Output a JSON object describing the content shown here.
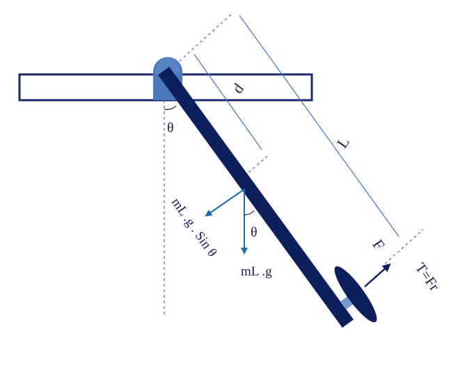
{
  "diagram": {
    "labels": {
      "theta_pivot": "θ",
      "distance_d": "d",
      "length_L": "L",
      "theta_mass": "θ",
      "weight_component": "mL .g . Sin θ",
      "weight": "mL .g",
      "force": "F",
      "torque": "T=Fr"
    },
    "colors": {
      "arm": "#0d1f5c",
      "beam": "#1a2a6c",
      "pivot": "#4a78b8",
      "pivot_cap": "#5585c5",
      "arrow": "#1c6ab0",
      "force_arrow": "#0d1f5c",
      "dim_line": "#3f74b8",
      "guide": "#5c6bb0",
      "propeller": "#0d1f5c",
      "motor": "#6f9bd4"
    },
    "icons": {
      "pivot": "pivot-joint-icon",
      "propeller": "propeller-icon",
      "motor": "motor-icon"
    }
  }
}
